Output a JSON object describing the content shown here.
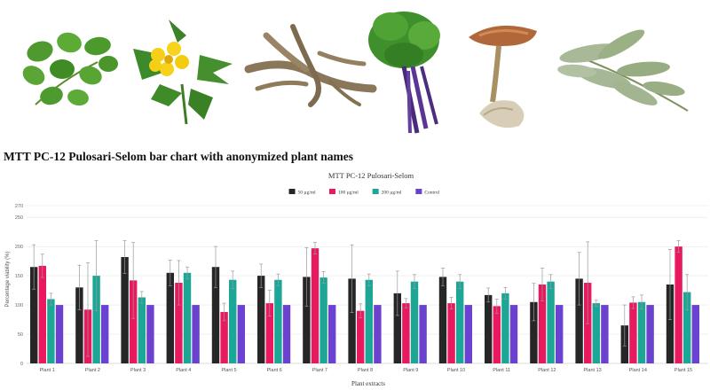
{
  "page": {
    "heading": "MTT PC-12 Pulosari-Selom bar chart with anonymized plant names",
    "photos": [
      "leaf-cluster-photo",
      "yellow-flower-plant-photo",
      "dried-root-photo",
      "herb-with-purple-roots-photo",
      "mushroom-photo",
      "sage-sprig-photo"
    ]
  },
  "chart_data": {
    "type": "bar",
    "title": "MTT PC-12 Pulosari-Selom",
    "xlabel": "Plant extracts",
    "ylabel": "Percentage viability (%)",
    "ylim": [
      0,
      270
    ],
    "yticks": [
      0,
      50,
      100,
      150,
      200,
      250,
      270
    ],
    "grid": true,
    "legend_position": "top",
    "categories": [
      "Plant 1",
      "Plant 2",
      "Plant 3",
      "Plant 4",
      "Plant 5",
      "Plant 6",
      "Plant 7",
      "Plant 8",
      "Plant 9",
      "Plant 10",
      "Plant 11",
      "Plant 12",
      "Plant 13",
      "Plant 14",
      "Plant 15"
    ],
    "series": [
      {
        "name": "50 µg/ml",
        "color": "#262626",
        "values": [
          165,
          130,
          182,
          155,
          165,
          150,
          148,
          145,
          120,
          148,
          117,
          105,
          145,
          65,
          135
        ],
        "errors": [
          38,
          38,
          28,
          22,
          35,
          20,
          50,
          58,
          38,
          15,
          12,
          32,
          45,
          35,
          60
        ]
      },
      {
        "name": "100 µg/ml",
        "color": "#e8195f",
        "values": [
          167,
          92,
          142,
          138,
          88,
          103,
          197,
          90,
          103,
          103,
          98,
          135,
          138,
          104,
          200
        ],
        "errors": [
          20,
          80,
          65,
          38,
          15,
          22,
          10,
          12,
          8,
          10,
          12,
          28,
          70,
          10,
          10
        ]
      },
      {
        "name": "200 µg/ml",
        "color": "#1ba696",
        "values": [
          110,
          150,
          113,
          155,
          143,
          143,
          147,
          143,
          140,
          140,
          120,
          140,
          103,
          105,
          122
        ],
        "errors": [
          10,
          60,
          10,
          10,
          15,
          10,
          10,
          10,
          12,
          12,
          10,
          12,
          5,
          12,
          30
        ]
      },
      {
        "name": "Control",
        "color": "#6a42cf",
        "values": [
          100,
          100,
          100,
          100,
          100,
          100,
          100,
          100,
          100,
          100,
          100,
          100,
          100,
          100,
          100
        ],
        "errors": [
          0,
          0,
          0,
          0,
          0,
          0,
          0,
          0,
          0,
          0,
          0,
          0,
          0,
          0,
          0
        ]
      }
    ]
  }
}
